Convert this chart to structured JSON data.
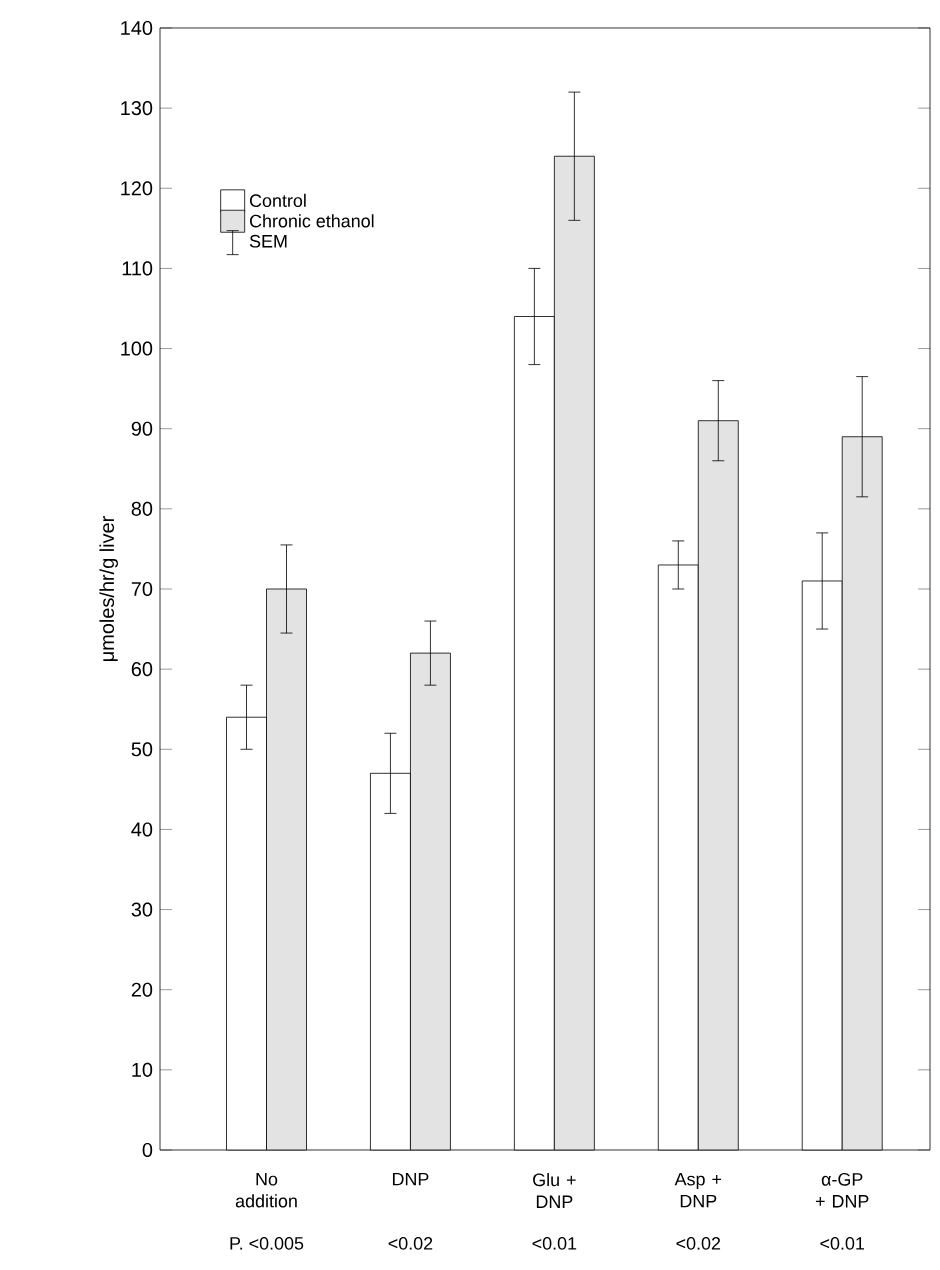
{
  "chart_data": {
    "type": "bar",
    "ylabel": "μmoles/hr/g liver",
    "categories": [
      "No addition",
      "DNP",
      "Glu + DNP",
      "Asp + DNP",
      "α-GP + DNP"
    ],
    "series": [
      {
        "name": "Control",
        "color": "#ffffff",
        "values": [
          54,
          47,
          104,
          73,
          71
        ],
        "errors": [
          4,
          5,
          6,
          3,
          6
        ]
      },
      {
        "name": "Chronic ethanol",
        "color": "#e3e3e3",
        "values": [
          70,
          62,
          124,
          91,
          89
        ],
        "errors": [
          5.5,
          4,
          8,
          5,
          7.5
        ]
      }
    ],
    "ylim": [
      0,
      140
    ],
    "yticks": [
      0,
      10,
      20,
      30,
      40,
      50,
      60,
      70,
      80,
      90,
      100,
      110,
      120,
      130,
      140
    ],
    "grid": false,
    "legend": "top left",
    "annotations": [
      "SEM",
      "P. <0.005",
      "<0.02",
      "<0.01",
      "<0.02",
      "<0.01"
    ]
  }
}
